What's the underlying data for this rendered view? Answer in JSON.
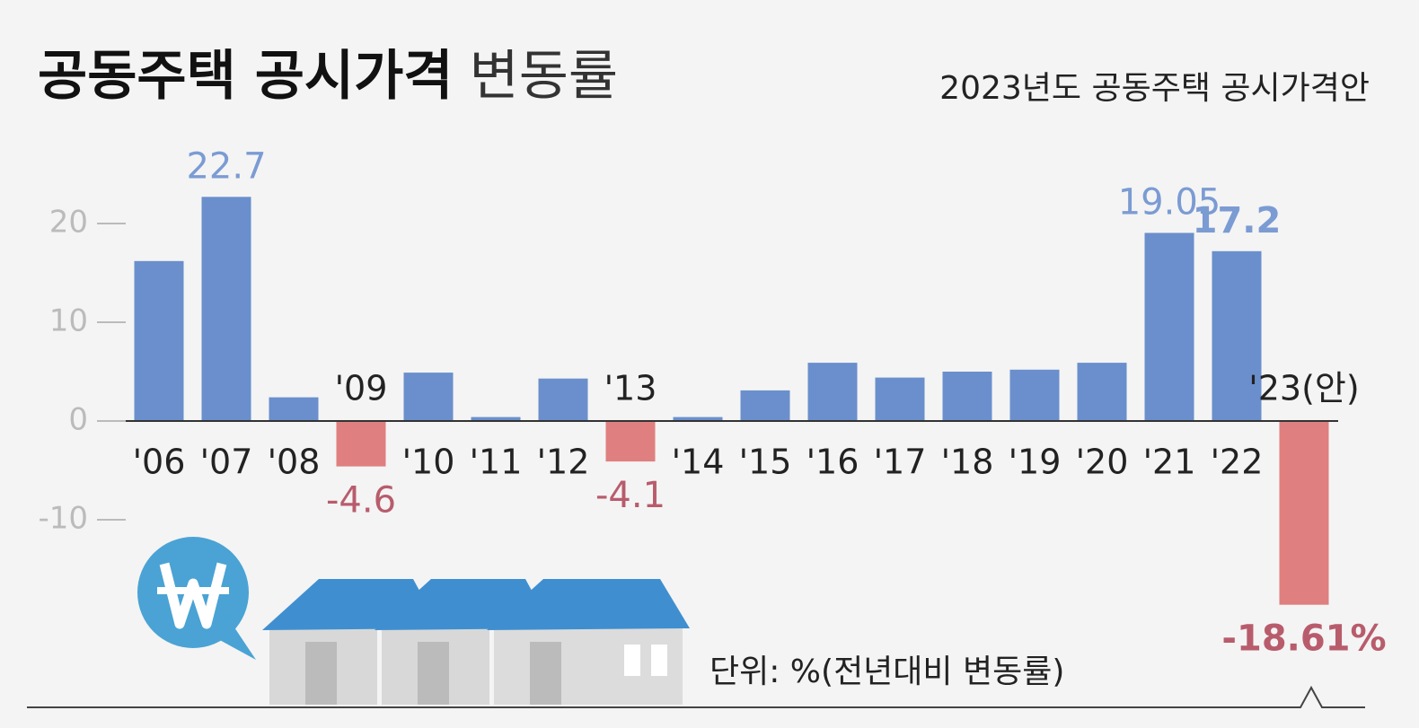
{
  "chart_data": {
    "type": "bar",
    "title_parts": [
      "공동주택 공시가격",
      "변동률"
    ],
    "subtitle": "2023년도 공동주택 공시가격안",
    "note": "단위: %(전년대비 변동률)",
    "categories": [
      "'06",
      "'07",
      "'08",
      "'09",
      "'10",
      "'11",
      "'12",
      "'13",
      "'14",
      "'15",
      "'16",
      "'17",
      "'18",
      "'19",
      "'20",
      "'21",
      "'22",
      "'23(안)"
    ],
    "values": [
      16.2,
      22.7,
      2.4,
      -4.6,
      4.9,
      0.4,
      4.3,
      -4.1,
      0.4,
      3.1,
      5.9,
      4.4,
      5.0,
      5.2,
      5.9,
      19.05,
      17.2,
      -18.61
    ],
    "value_labels": [
      null,
      "22.7",
      null,
      "-4.6",
      null,
      null,
      null,
      "-4.1",
      null,
      null,
      null,
      null,
      null,
      null,
      null,
      "19.05",
      "17.2",
      "-18.61%"
    ],
    "positive_color": "#6a8fcc",
    "negative_color": "#e07f7f",
    "ylim": [
      -25,
      25
    ],
    "yticks": [
      20,
      10,
      0,
      -10
    ],
    "grid": false
  }
}
